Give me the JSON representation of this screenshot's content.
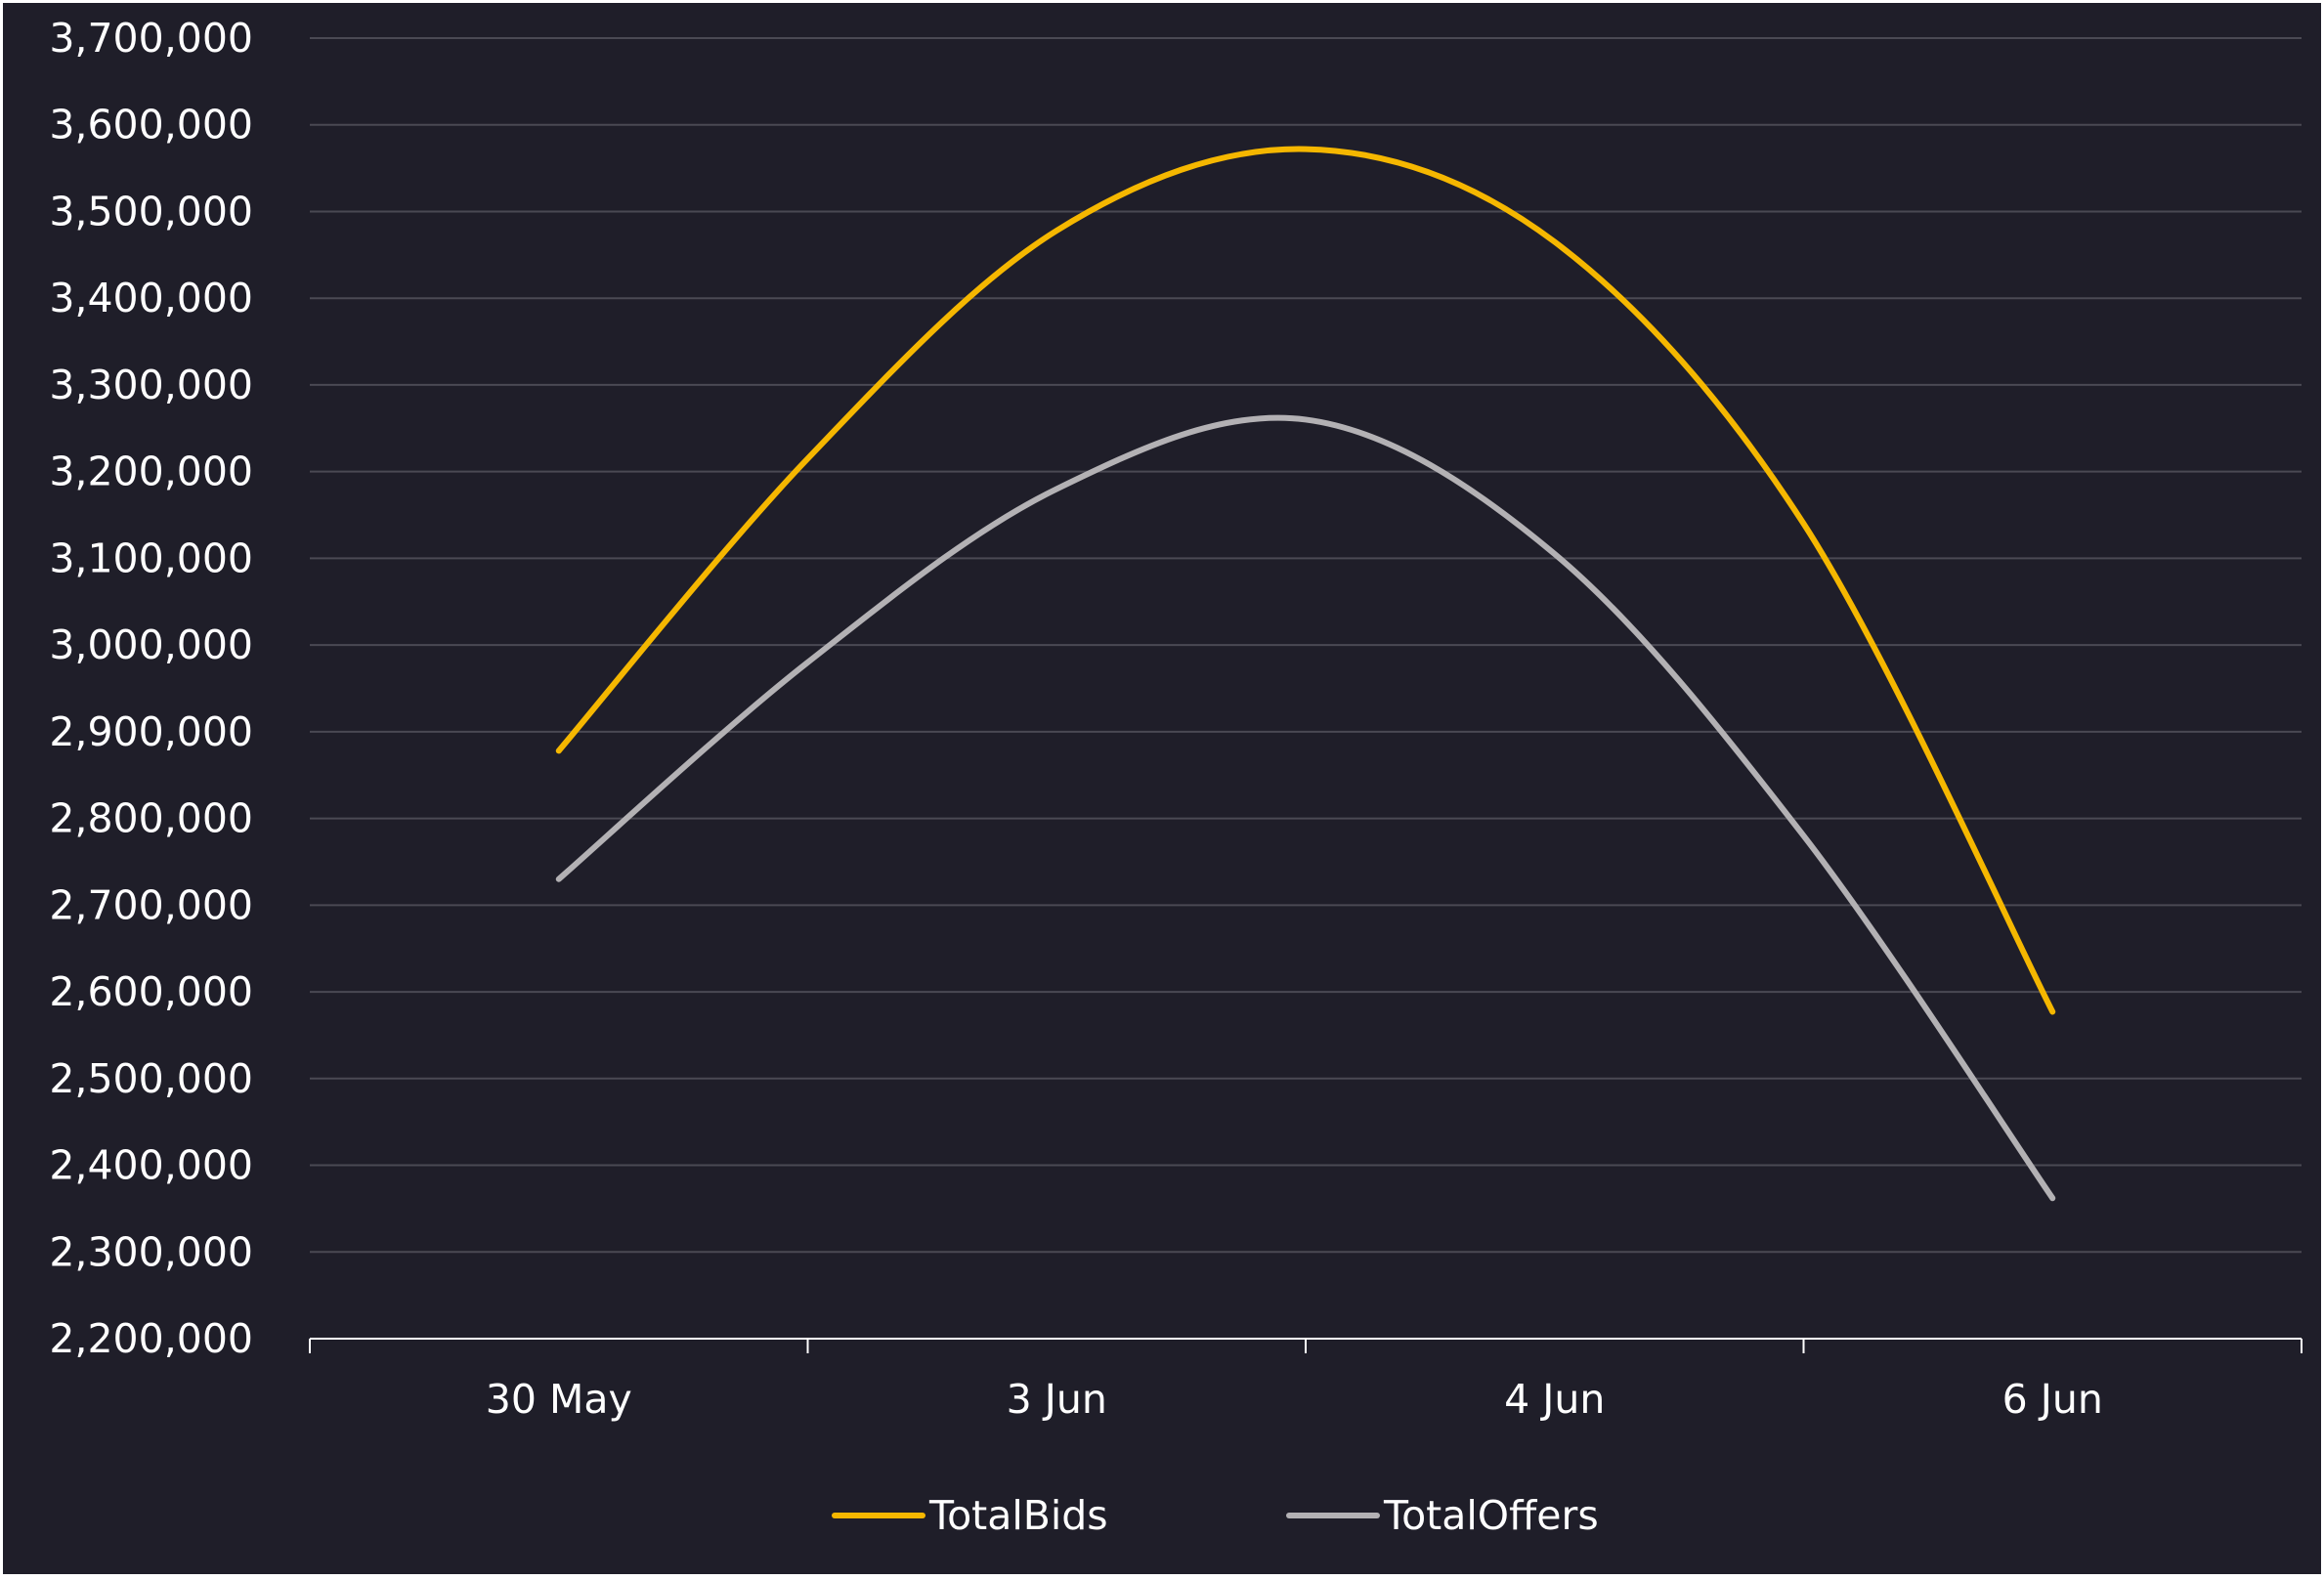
{
  "chart_data": {
    "type": "line",
    "title": "",
    "xlabel": "",
    "ylabel": "",
    "categories": [
      "30 May",
      "3 Jun",
      "4 Jun",
      "6 Jun"
    ],
    "ylim": [
      2200000,
      3700000
    ],
    "yticks": [
      2200000,
      2300000,
      2400000,
      2500000,
      2600000,
      2700000,
      2800000,
      2900000,
      3000000,
      3100000,
      3200000,
      3300000,
      3400000,
      3500000,
      3600000,
      3700000
    ],
    "ytick_labels": [
      "2,200,000",
      "2,300,000",
      "2,400,000",
      "2,500,000",
      "2,600,000",
      "2,700,000",
      "2,800,000",
      "2,900,000",
      "3,000,000",
      "3,100,000",
      "3,200,000",
      "3,300,000",
      "3,400,000",
      "3,500,000",
      "3,600,000",
      "3,700,000"
    ],
    "grid": true,
    "smooth": true,
    "legend_position": "bottom",
    "series": [
      {
        "name": "TotalBids",
        "color": "#f5b700",
        "x": [
          0,
          0.5,
          1,
          1.5,
          2,
          2.5,
          3
        ],
        "values": [
          2878000,
          3215000,
          3478000,
          3572000,
          3465000,
          3140000,
          2577000
        ]
      },
      {
        "name": "TotalOffers",
        "color": "#b3b1b4",
        "x": [
          0,
          0.5,
          1,
          1.5,
          2,
          2.5,
          3
        ],
        "values": [
          2730000,
          2980000,
          3180000,
          3260000,
          3105000,
          2780000,
          2362000
        ]
      }
    ],
    "colors": {
      "background": "#1f1e29",
      "grid": "#4a4953",
      "axis": "#ffffff",
      "text": "#ffffff"
    }
  }
}
